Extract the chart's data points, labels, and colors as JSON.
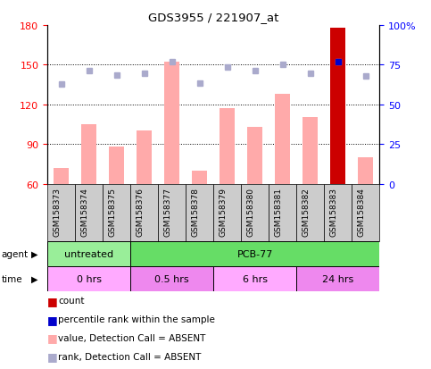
{
  "title": "GDS3955 / 221907_at",
  "samples": [
    "GSM158373",
    "GSM158374",
    "GSM158375",
    "GSM158376",
    "GSM158377",
    "GSM158378",
    "GSM158379",
    "GSM158380",
    "GSM158381",
    "GSM158382",
    "GSM158383",
    "GSM158384"
  ],
  "pink_bar_values": [
    72,
    105,
    88,
    100,
    152,
    70,
    117,
    103,
    128,
    110,
    178,
    80
  ],
  "bar_base": 60,
  "rank_squares": [
    135,
    145,
    142,
    143,
    152,
    136,
    148,
    145,
    150,
    143,
    152,
    141
  ],
  "count_bar_index": 10,
  "count_bar_value": 178,
  "count_bar_color": "#cc0000",
  "count_percentile_index": 10,
  "count_percentile_value": 152,
  "pink_bar_color": "#ffaaaa",
  "rank_square_color": "#aaaacc",
  "percentile_dot_color": "#0000cc",
  "ylim_left": [
    60,
    180
  ],
  "ylim_right": [
    0,
    100
  ],
  "yticks_left": [
    60,
    90,
    120,
    150,
    180
  ],
  "yticks_right": [
    0,
    25,
    50,
    75,
    100
  ],
  "ytick_labels_right": [
    "0",
    "25",
    "50",
    "75",
    "100%"
  ],
  "agent_groups": [
    {
      "label": "untreated",
      "start": 0,
      "end": 3,
      "color": "#99ee99"
    },
    {
      "label": "PCB-77",
      "start": 3,
      "end": 12,
      "color": "#66dd66"
    }
  ],
  "time_groups": [
    {
      "label": "0 hrs",
      "start": 0,
      "end": 3,
      "color": "#ffaaff"
    },
    {
      "label": "0.5 hrs",
      "start": 3,
      "end": 6,
      "color": "#ee88ee"
    },
    {
      "label": "6 hrs",
      "start": 6,
      "end": 9,
      "color": "#ffaaff"
    },
    {
      "label": "24 hrs",
      "start": 9,
      "end": 12,
      "color": "#ee88ee"
    }
  ],
  "legend_items": [
    {
      "label": "count",
      "color": "#cc0000"
    },
    {
      "label": "percentile rank within the sample",
      "color": "#0000cc"
    },
    {
      "label": "value, Detection Call = ABSENT",
      "color": "#ffaaaa"
    },
    {
      "label": "rank, Detection Call = ABSENT",
      "color": "#aaaacc"
    }
  ],
  "grey_box_color": "#cccccc",
  "fig_width": 4.83,
  "fig_height": 4.14,
  "dpi": 100
}
